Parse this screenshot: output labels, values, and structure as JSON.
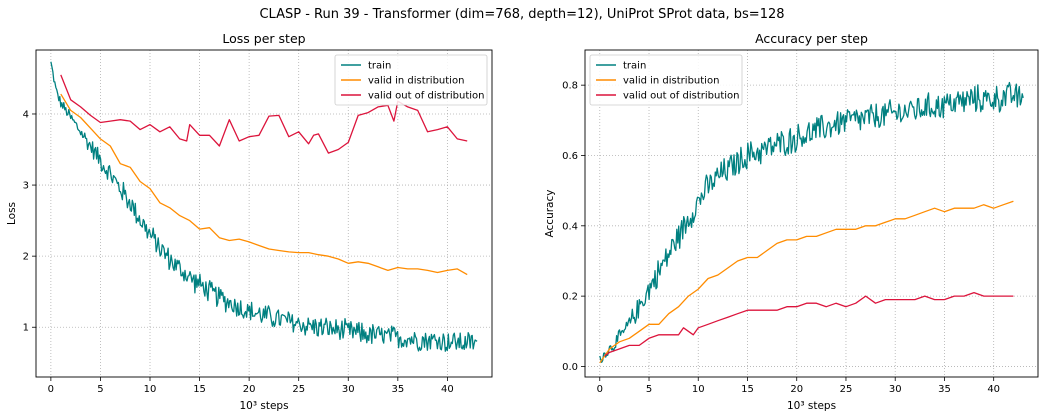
{
  "figure": {
    "title": "CLASP - Run 39 - Transformer (dim=768, depth=12), UniProt SProt data, bs=128"
  },
  "colors": {
    "train": "#008080",
    "valid_in": "#ff8c00",
    "valid_out": "#dc143c",
    "grid": "#b0b0b0"
  },
  "chart_data": [
    {
      "type": "line",
      "title": "Loss per step",
      "xlabel": "10³ steps",
      "ylabel": "Loss",
      "xlim": [
        -1.5,
        44.5
      ],
      "ylim": [
        0.3,
        4.9
      ],
      "xticks": [
        0,
        5,
        10,
        15,
        20,
        25,
        30,
        35,
        40
      ],
      "yticks": [
        1,
        2,
        3,
        4
      ],
      "grid": true,
      "legend_position": "top-right",
      "series": [
        {
          "name": "train",
          "color": "#008080",
          "noisy": true,
          "noise_amplitude": 0.18,
          "x": [
            0,
            0.5,
            1,
            2,
            3,
            4,
            5,
            6,
            7,
            8,
            9,
            10,
            11,
            12,
            13,
            14,
            15,
            16,
            17,
            18,
            19,
            20,
            22,
            24,
            26,
            28,
            30,
            32,
            34,
            36,
            38,
            40,
            42,
            43
          ],
          "y": [
            4.72,
            4.35,
            4.15,
            3.95,
            3.75,
            3.55,
            3.35,
            3.15,
            2.95,
            2.75,
            2.52,
            2.3,
            2.12,
            1.95,
            1.82,
            1.7,
            1.6,
            1.5,
            1.42,
            1.35,
            1.28,
            1.22,
            1.15,
            1.08,
            1.02,
            0.98,
            0.94,
            0.9,
            0.87,
            0.84,
            0.82,
            0.8,
            0.78,
            0.78
          ]
        },
        {
          "name": "valid in distribution",
          "color": "#ff8c00",
          "x": [
            1,
            2,
            3,
            4,
            5,
            6,
            7,
            8,
            9,
            10,
            11,
            12,
            13,
            14,
            15,
            16,
            17,
            18,
            19,
            20,
            21,
            22,
            23,
            24,
            25,
            26,
            27,
            28,
            29,
            30,
            31,
            32,
            33,
            34,
            35,
            36,
            37,
            38,
            39,
            40,
            41,
            42
          ],
          "y": [
            4.28,
            4.05,
            3.95,
            3.8,
            3.65,
            3.55,
            3.3,
            3.25,
            3.05,
            2.95,
            2.75,
            2.68,
            2.57,
            2.5,
            2.38,
            2.4,
            2.26,
            2.22,
            2.24,
            2.2,
            2.15,
            2.1,
            2.08,
            2.06,
            2.05,
            2.05,
            2.02,
            2.0,
            1.96,
            1.9,
            1.92,
            1.9,
            1.85,
            1.8,
            1.84,
            1.82,
            1.82,
            1.8,
            1.77,
            1.8,
            1.82,
            1.74
          ]
        },
        {
          "name": "valid out of distribution",
          "color": "#dc143c",
          "x": [
            1,
            2,
            3,
            4,
            5,
            6,
            7,
            8,
            9,
            10,
            11,
            12,
            13,
            13.7,
            14,
            15,
            16,
            17,
            18,
            19,
            20,
            21,
            22,
            23,
            24,
            25,
            26,
            26.5,
            27,
            28,
            29,
            30,
            31,
            32,
            33,
            34,
            34.6,
            35,
            36,
            37,
            38,
            39,
            40,
            41,
            42
          ],
          "y": [
            4.55,
            4.2,
            4.1,
            3.98,
            3.88,
            3.9,
            3.92,
            3.9,
            3.78,
            3.85,
            3.75,
            3.82,
            3.65,
            3.62,
            3.85,
            3.7,
            3.7,
            3.55,
            3.92,
            3.62,
            3.68,
            3.7,
            3.97,
            3.98,
            3.68,
            3.75,
            3.58,
            3.7,
            3.72,
            3.45,
            3.5,
            3.6,
            3.98,
            4.02,
            4.1,
            4.12,
            3.9,
            4.18,
            4.1,
            4.05,
            3.75,
            3.78,
            3.82,
            3.65,
            3.62
          ]
        }
      ]
    },
    {
      "type": "line",
      "title": "Accuracy per step",
      "xlabel": "10³ steps",
      "ylabel": "Accuracy",
      "xlim": [
        -1.5,
        44.5
      ],
      "ylim": [
        -0.03,
        0.9
      ],
      "xticks": [
        0,
        5,
        10,
        15,
        20,
        25,
        30,
        35,
        40
      ],
      "yticks": [
        0.0,
        0.2,
        0.4,
        0.6,
        0.8
      ],
      "grid": true,
      "legend_position": "top-left",
      "series": [
        {
          "name": "train",
          "color": "#008080",
          "noisy": true,
          "noise_amplitude": 0.045,
          "x": [
            0,
            1,
            2,
            3,
            4,
            5,
            6,
            7,
            8,
            9,
            10,
            11,
            12,
            13,
            14,
            15,
            16,
            17,
            18,
            19,
            20,
            21,
            22,
            23,
            24,
            25,
            26,
            28,
            30,
            32,
            34,
            36,
            38,
            40,
            42,
            43
          ],
          "y": [
            0.02,
            0.05,
            0.08,
            0.12,
            0.17,
            0.22,
            0.27,
            0.32,
            0.37,
            0.42,
            0.47,
            0.51,
            0.54,
            0.56,
            0.58,
            0.6,
            0.61,
            0.62,
            0.63,
            0.64,
            0.65,
            0.66,
            0.67,
            0.68,
            0.69,
            0.7,
            0.7,
            0.71,
            0.72,
            0.73,
            0.74,
            0.75,
            0.76,
            0.76,
            0.77,
            0.76
          ]
        },
        {
          "name": "valid in distribution",
          "color": "#ff8c00",
          "x": [
            0,
            1,
            2,
            3,
            4,
            5,
            6,
            7,
            8,
            9,
            10,
            11,
            12,
            13,
            14,
            15,
            16,
            17,
            18,
            19,
            20,
            21,
            22,
            23,
            24,
            25,
            26,
            27,
            28,
            29,
            30,
            31,
            32,
            33,
            34,
            35,
            36,
            37,
            38,
            39,
            40,
            41,
            42
          ],
          "y": [
            0.01,
            0.05,
            0.07,
            0.08,
            0.1,
            0.12,
            0.12,
            0.15,
            0.17,
            0.2,
            0.22,
            0.25,
            0.26,
            0.28,
            0.3,
            0.31,
            0.31,
            0.33,
            0.35,
            0.36,
            0.36,
            0.37,
            0.37,
            0.38,
            0.39,
            0.39,
            0.39,
            0.4,
            0.4,
            0.41,
            0.42,
            0.42,
            0.43,
            0.44,
            0.45,
            0.44,
            0.45,
            0.45,
            0.45,
            0.46,
            0.45,
            0.46,
            0.47
          ]
        },
        {
          "name": "valid out of distribution",
          "color": "#dc143c",
          "x": [
            0.5,
            1,
            2,
            3,
            4,
            5,
            6,
            7,
            8,
            8.5,
            9.5,
            10,
            11,
            12,
            13,
            14,
            15,
            16,
            17,
            18,
            19,
            20,
            21,
            22,
            23,
            24,
            25,
            26,
            27,
            28,
            29,
            30,
            31,
            32,
            33,
            34,
            35,
            36,
            37,
            38,
            39,
            40,
            41,
            42
          ],
          "y": [
            0.03,
            0.04,
            0.05,
            0.06,
            0.06,
            0.08,
            0.09,
            0.09,
            0.09,
            0.11,
            0.09,
            0.11,
            0.12,
            0.13,
            0.14,
            0.15,
            0.16,
            0.16,
            0.16,
            0.16,
            0.17,
            0.17,
            0.18,
            0.18,
            0.17,
            0.18,
            0.17,
            0.18,
            0.2,
            0.18,
            0.19,
            0.19,
            0.19,
            0.19,
            0.2,
            0.19,
            0.19,
            0.2,
            0.2,
            0.21,
            0.2,
            0.2,
            0.2,
            0.2
          ]
        }
      ]
    }
  ]
}
